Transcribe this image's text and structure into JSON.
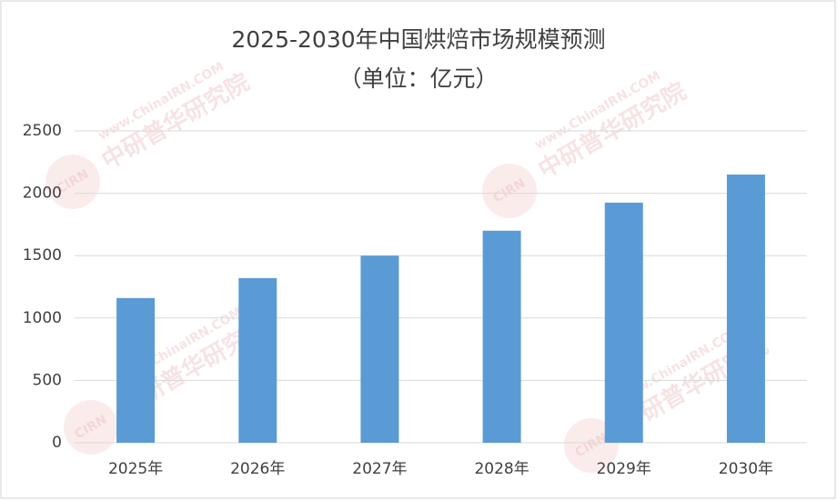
{
  "chart_data": {
    "type": "bar",
    "title": "2025-2030年中国烘焙市场规模预测",
    "subtitle": "（单位：亿元）",
    "watermark": "中研普华研究院",
    "watermark_site": "www.ChinaIRN.COM",
    "watermark_logo": "CIRN",
    "categories": [
      "2025年",
      "2026年",
      "2027年",
      "2028年",
      "2029年",
      "2030年"
    ],
    "values": [
      1160,
      1320,
      1500,
      1700,
      1925,
      2150
    ],
    "color": "#5b9bd5",
    "ylim": [
      0,
      2500
    ],
    "yticks": [
      0,
      500,
      1000,
      1500,
      2000,
      2500
    ],
    "grid": true
  }
}
